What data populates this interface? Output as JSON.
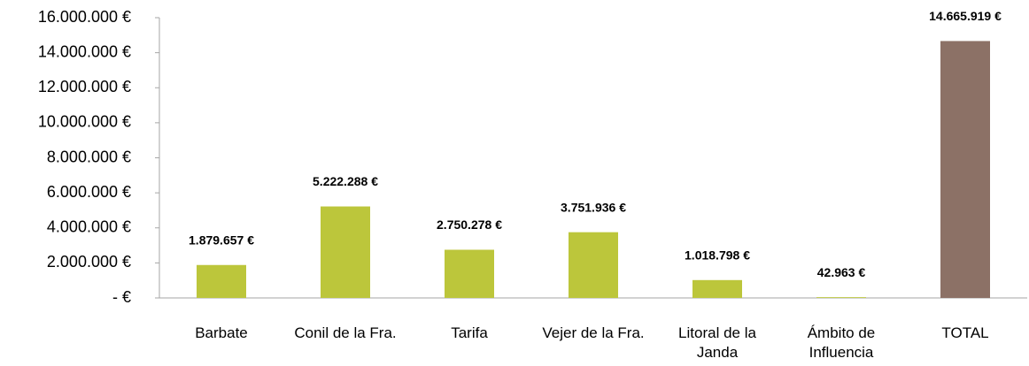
{
  "chart_data": {
    "type": "bar",
    "categories": [
      "Barbate",
      "Conil de la Fra.",
      "Tarifa",
      "Vejer de la Fra.",
      "Litoral de la Janda",
      "Ámbito de Influencia",
      "TOTAL"
    ],
    "values": [
      1879657,
      5222288,
      2750278,
      3751936,
      1018798,
      42963,
      14665919
    ],
    "value_labels": [
      "1.879.657 €",
      "5.222.288 €",
      "2.750.278 €",
      "3.751.936 €",
      "1.018.798 €",
      "42.963 €",
      "14.665.919 €"
    ],
    "colors": [
      "#bcc63b",
      "#bcc63b",
      "#bcc63b",
      "#bcc63b",
      "#bcc63b",
      "#bcc63b",
      "#8c7166"
    ],
    "ylim": [
      0,
      16000000
    ],
    "yticks": [
      {
        "value": 0,
        "label": "-   €"
      },
      {
        "value": 2000000,
        "label": "2.000.000 €"
      },
      {
        "value": 4000000,
        "label": "4.000.000 €"
      },
      {
        "value": 6000000,
        "label": "6.000.000 €"
      },
      {
        "value": 8000000,
        "label": "8.000.000 €"
      },
      {
        "value": 10000000,
        "label": "10.000.000 €"
      },
      {
        "value": 12000000,
        "label": "12.000.000 €"
      },
      {
        "value": 14000000,
        "label": "14.000.000 €"
      },
      {
        "value": 16000000,
        "label": "16.000.000 €"
      }
    ],
    "grid": false
  }
}
